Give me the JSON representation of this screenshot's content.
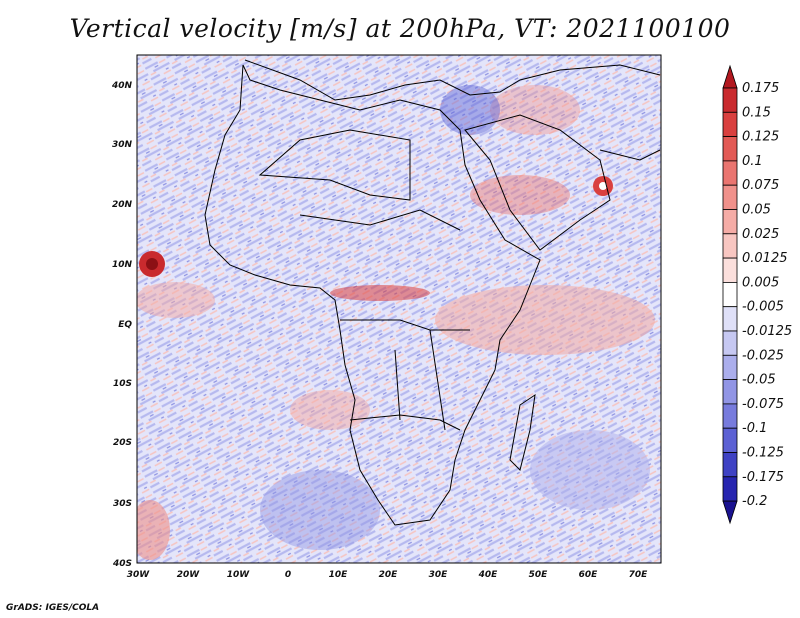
{
  "title": "Vertical velocity [m/s] at 200hPa, VT: 2021100100",
  "credit": "GrADS: IGES/COLA",
  "map": {
    "lat_ticks": [
      "40N",
      "30N",
      "20N",
      "10N",
      "EQ",
      "10S",
      "20S",
      "30S",
      "40S"
    ],
    "lon_ticks": [
      "30W",
      "20W",
      "10W",
      "0",
      "10E",
      "20E",
      "30E",
      "40E",
      "50E",
      "60E",
      "70E"
    ],
    "lat_range": [
      -40,
      45
    ],
    "lon_range": [
      -30,
      76
    ]
  },
  "colorbar": {
    "labels": [
      "0.175",
      "0.15",
      "0.125",
      "0.1",
      "0.075",
      "0.05",
      "0.025",
      "0.0125",
      "0.005",
      "-0.005",
      "-0.0125",
      "-0.025",
      "-0.05",
      "-0.075",
      "-0.1",
      "-0.125",
      "-0.175",
      "-0.2"
    ],
    "colors": [
      "#b2181f",
      "#c92a2e",
      "#d9403f",
      "#e25a55",
      "#ea7570",
      "#f0918b",
      "#f5aca6",
      "#f8c6c1",
      "#fbdfdc",
      "#ffffff",
      "#dfe0f8",
      "#c6c8f2",
      "#abaeec",
      "#9195e5",
      "#777bdd",
      "#5c61d4",
      "#3f42c4",
      "#2725b0",
      "#1a1290"
    ]
  }
}
